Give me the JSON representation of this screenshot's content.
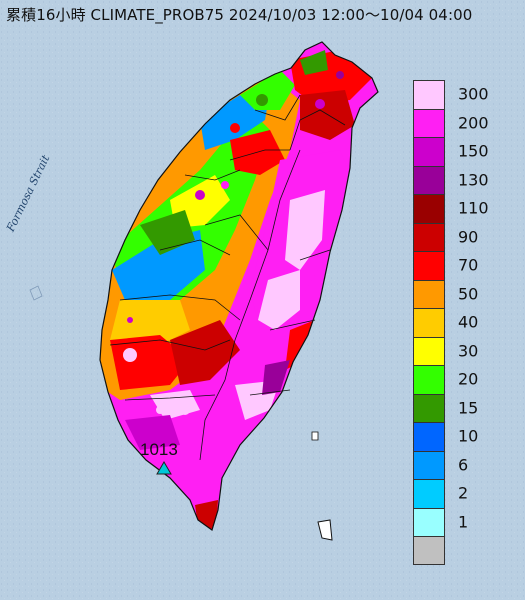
{
  "title": "累積16小時 CLIMATE_PROB75 2024/10/03 12:00～10/04 04:00",
  "strait_label": "Formosa Strait",
  "pressure_label": "1013",
  "legend": {
    "entries": [
      {
        "label": "300",
        "color": "#ffc8ff"
      },
      {
        "label": "200",
        "color": "#ff1ff3"
      },
      {
        "label": "150",
        "color": "#cc00cc"
      },
      {
        "label": "130",
        "color": "#990099"
      },
      {
        "label": "110",
        "color": "#9a0000"
      },
      {
        "label": "90",
        "color": "#cc0000"
      },
      {
        "label": "70",
        "color": "#ff0000"
      },
      {
        "label": "50",
        "color": "#ff9900"
      },
      {
        "label": "40",
        "color": "#ffcc00"
      },
      {
        "label": "30",
        "color": "#ffff00"
      },
      {
        "label": "20",
        "color": "#33ff00"
      },
      {
        "label": "15",
        "color": "#339900"
      },
      {
        "label": "10",
        "color": "#0066ff"
      },
      {
        "label": "6",
        "color": "#0099ff"
      },
      {
        "label": "2",
        "color": "#00ccff"
      },
      {
        "label": "1",
        "color": "#99ffff"
      },
      {
        "label": "",
        "color": "#c0c0c0"
      }
    ]
  },
  "colors": {
    "sea": "#b8cde0",
    "border": "#111111",
    "pressure_marker": "#00c8d8"
  }
}
